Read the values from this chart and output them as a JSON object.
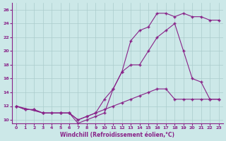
{
  "xlabel": "Windchill (Refroidissement éolien,°C)",
  "bg_color": "#cce8e8",
  "line_color": "#882288",
  "grid_color": "#aacccc",
  "xlim": [
    -0.5,
    23.5
  ],
  "ylim": [
    9.5,
    27
  ],
  "xticks": [
    0,
    1,
    2,
    3,
    4,
    5,
    6,
    7,
    8,
    9,
    10,
    11,
    12,
    13,
    14,
    15,
    16,
    17,
    18,
    19,
    20,
    21,
    22,
    23
  ],
  "yticks": [
    10,
    12,
    14,
    16,
    18,
    20,
    22,
    24,
    26
  ],
  "line1_x": [
    0,
    1,
    2,
    3,
    4,
    5,
    6,
    7,
    8,
    9,
    10,
    11,
    12,
    13,
    14,
    15,
    16,
    17,
    18,
    19,
    20,
    21,
    22,
    23
  ],
  "line1_y": [
    12,
    11.5,
    11.5,
    11,
    11,
    11,
    11,
    10,
    10.5,
    11,
    11.5,
    12,
    12.5,
    13,
    13.5,
    14,
    14.5,
    14.5,
    13,
    13,
    13,
    13,
    13,
    13
  ],
  "line2_x": [
    0,
    1,
    2,
    3,
    4,
    5,
    6,
    7,
    8,
    9,
    10,
    11,
    12,
    13,
    14,
    15,
    16,
    17,
    18,
    19,
    20,
    21,
    22,
    23
  ],
  "line2_y": [
    12,
    11.5,
    11.5,
    11,
    11,
    11,
    11,
    10,
    10.5,
    11,
    13,
    14.5,
    17,
    21.5,
    23,
    23.5,
    25.5,
    25.5,
    25,
    25.5,
    25,
    25,
    24.5,
    24.5
  ],
  "line3_x": [
    0,
    3,
    5,
    6,
    7,
    8,
    9,
    10,
    11,
    12,
    13,
    14,
    15,
    16,
    17,
    18,
    19,
    20,
    21,
    22,
    23
  ],
  "line3_y": [
    12,
    11,
    11,
    11,
    9.5,
    10,
    10.5,
    11,
    14.5,
    17,
    18,
    18,
    20,
    22,
    23,
    24,
    20,
    16,
    15.5,
    13,
    13
  ]
}
